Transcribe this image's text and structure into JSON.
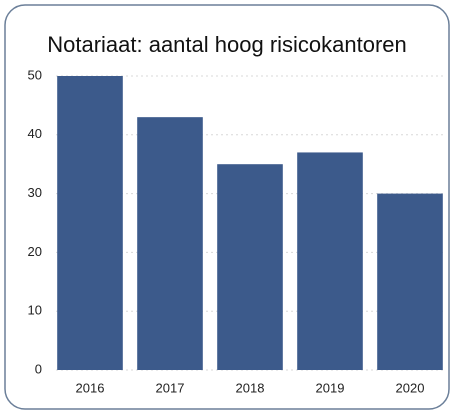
{
  "chart_data": {
    "type": "bar",
    "title": "Notariaat: aantal hoog risicokantoren",
    "categories": [
      "2016",
      "2017",
      "2018",
      "2019",
      "2020"
    ],
    "values": [
      50,
      43,
      35,
      37,
      30
    ],
    "color": "#3c5a8b",
    "ylim": [
      0,
      50
    ],
    "yticks": [
      0,
      10,
      20,
      30,
      40,
      50
    ],
    "grid": true
  }
}
